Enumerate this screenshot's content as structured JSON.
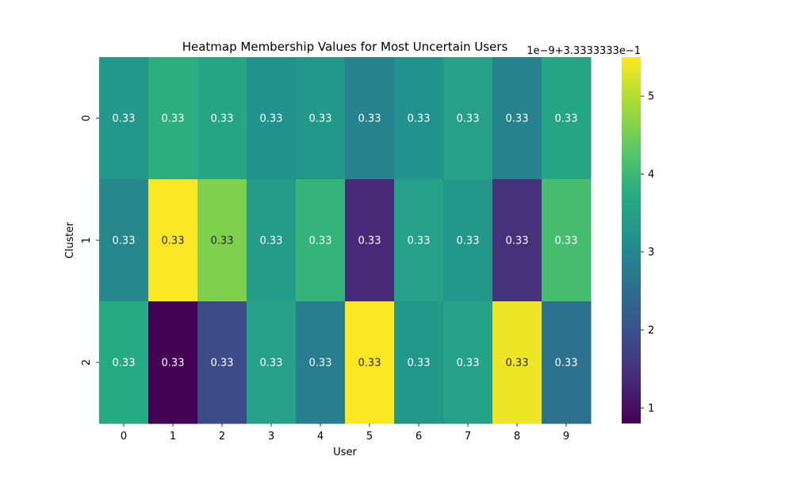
{
  "chart_data": {
    "type": "heatmap",
    "title": "Heatmap Membership Values for Most Uncertain Users",
    "xlabel": "User",
    "ylabel": "Cluster",
    "x_categories": [
      "0",
      "1",
      "2",
      "3",
      "4",
      "5",
      "6",
      "7",
      "8",
      "9"
    ],
    "y_categories": [
      "0",
      "1",
      "2"
    ],
    "cell_labels": [
      [
        "0.33",
        "0.33",
        "0.33",
        "0.33",
        "0.33",
        "0.33",
        "0.33",
        "0.33",
        "0.33",
        "0.33"
      ],
      [
        "0.33",
        "0.33",
        "0.33",
        "0.33",
        "0.33",
        "0.33",
        "0.33",
        "0.33",
        "0.33",
        "0.33"
      ],
      [
        "0.33",
        "0.33",
        "0.33",
        "0.33",
        "0.33",
        "0.33",
        "0.33",
        "0.33",
        "0.33",
        "0.33"
      ]
    ],
    "values_scaled": [
      [
        3.3,
        3.8,
        3.6,
        3.2,
        3.3,
        2.9,
        3.2,
        3.5,
        2.9,
        3.6
      ],
      [
        3.0,
        5.5,
        4.6,
        3.4,
        3.9,
        1.4,
        3.5,
        3.3,
        1.5,
        4.1
      ],
      [
        3.7,
        0.8,
        1.9,
        3.5,
        2.8,
        5.5,
        3.3,
        3.5,
        5.4,
        2.6
      ]
    ],
    "colorbar": {
      "colormap": "viridis",
      "range": [
        0.8,
        5.5
      ],
      "ticks": [
        "1",
        "2",
        "3",
        "4",
        "5"
      ],
      "tick_values": [
        1,
        2,
        3,
        4,
        5
      ],
      "offset_text": "1e−9+3.3333333e−1"
    }
  }
}
